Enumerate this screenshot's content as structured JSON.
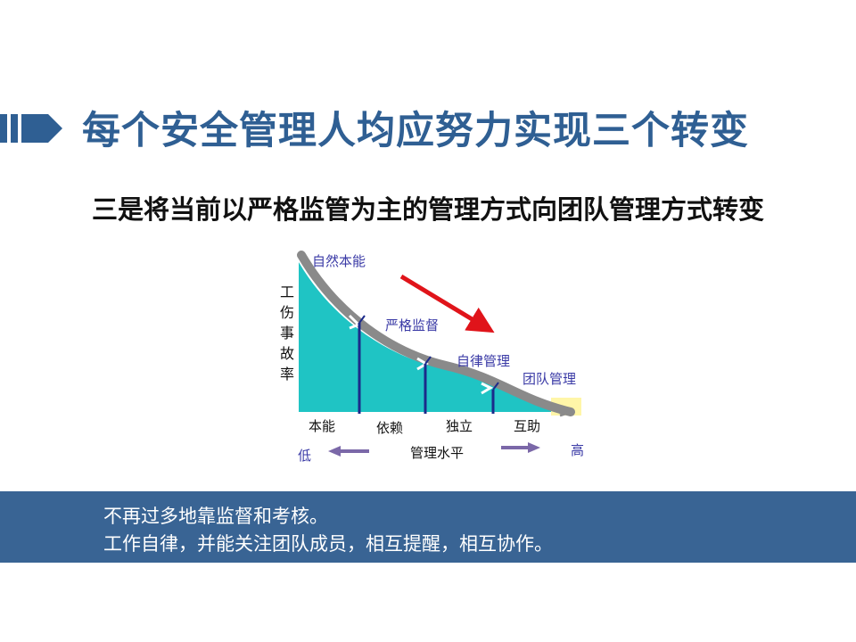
{
  "title": "每个安全管理人均应努力实现三个转变",
  "subtitle": "三是将当前以严格监管为主的管理方式向团队管理方式转变",
  "diagram": {
    "y_axis_label": "工伤事故率",
    "curve_labels": [
      "自然本能",
      "严格监督",
      "自律管理",
      "团队管理"
    ],
    "stages": [
      "本能",
      "依赖",
      "独立",
      "互助"
    ],
    "x_axis_label": "管理水平",
    "low_label": "低",
    "high_label": "高"
  },
  "banner": {
    "line1": "不再过多地靠监督和考核。",
    "line2": "工作自律，并能关注团队成员，相互提醒，相互协作。"
  },
  "colors": {
    "title": "#2f5f93",
    "banner": "#396494",
    "area": "#1fc4c4",
    "arrow_red": "#e0141a",
    "arrow_purple": "#7b68a8"
  }
}
